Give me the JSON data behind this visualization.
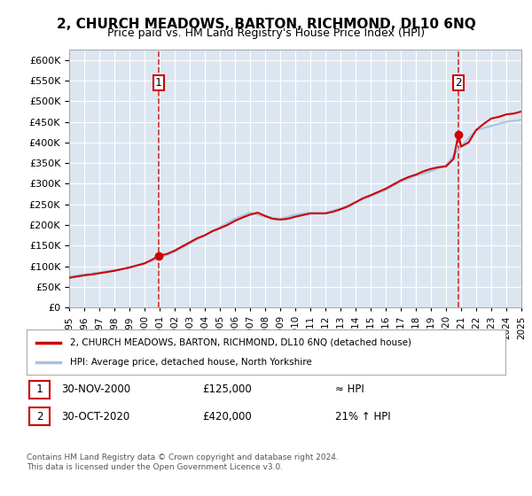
{
  "title": "2, CHURCH MEADOWS, BARTON, RICHMOND, DL10 6NQ",
  "subtitle": "Price paid vs. HM Land Registry's House Price Index (HPI)",
  "bg_color": "#dce6f1",
  "plot_bg_color": "#dce6f1",
  "hpi_color": "#a8c4e0",
  "price_color": "#cc0000",
  "annotation_box_color": "#cc0000",
  "sale1": {
    "date": 2000.92,
    "price": 125000,
    "label": "1"
  },
  "sale2": {
    "date": 2020.83,
    "price": 420000,
    "label": "2"
  },
  "hpi_years": [
    1995,
    1996,
    1997,
    1998,
    1999,
    2000,
    2001,
    2002,
    2003,
    2004,
    2005,
    2006,
    2007,
    2008,
    2009,
    2010,
    2011,
    2012,
    2013,
    2014,
    2015,
    2016,
    2017,
    2018,
    2019,
    2020,
    2021,
    2022,
    2023,
    2024,
    2025
  ],
  "hpi_values": [
    75000,
    80000,
    85000,
    90000,
    97000,
    107000,
    120000,
    135000,
    155000,
    175000,
    195000,
    215000,
    230000,
    220000,
    215000,
    225000,
    230000,
    230000,
    240000,
    255000,
    270000,
    285000,
    305000,
    320000,
    330000,
    345000,
    390000,
    430000,
    440000,
    450000,
    455000
  ],
  "price_years": [
    1995.0,
    1995.5,
    1996.0,
    1996.5,
    1997.0,
    1997.5,
    1998.0,
    1998.5,
    1999.0,
    1999.5,
    2000.0,
    2000.5,
    2000.92,
    2001.5,
    2002.0,
    2002.5,
    2003.0,
    2003.5,
    2004.0,
    2004.5,
    2005.0,
    2005.5,
    2006.0,
    2006.5,
    2007.0,
    2007.5,
    2008.0,
    2008.5,
    2009.0,
    2009.5,
    2010.0,
    2010.5,
    2011.0,
    2011.5,
    2012.0,
    2012.5,
    2013.0,
    2013.5,
    2014.0,
    2014.5,
    2015.0,
    2015.5,
    2016.0,
    2016.5,
    2017.0,
    2017.5,
    2018.0,
    2018.5,
    2019.0,
    2019.5,
    2020.0,
    2020.5,
    2020.83,
    2021.0,
    2021.5,
    2022.0,
    2022.5,
    2023.0,
    2023.5,
    2024.0,
    2024.5,
    2025.0
  ],
  "price_values": [
    72000,
    75000,
    78000,
    80000,
    83000,
    86000,
    89000,
    93000,
    97000,
    102000,
    107000,
    116000,
    125000,
    130000,
    138000,
    148000,
    158000,
    168000,
    175000,
    185000,
    192000,
    200000,
    210000,
    218000,
    225000,
    230000,
    222000,
    215000,
    213000,
    215000,
    220000,
    224000,
    228000,
    228000,
    228000,
    232000,
    238000,
    245000,
    255000,
    265000,
    272000,
    280000,
    288000,
    298000,
    308000,
    316000,
    322000,
    330000,
    336000,
    340000,
    342000,
    360000,
    420000,
    390000,
    400000,
    430000,
    445000,
    458000,
    462000,
    468000,
    470000,
    475000
  ],
  "xlim": [
    1995,
    2025
  ],
  "ylim": [
    0,
    625000
  ],
  "yticks": [
    0,
    50000,
    100000,
    150000,
    200000,
    250000,
    300000,
    350000,
    400000,
    450000,
    500000,
    550000,
    600000
  ],
  "xticks": [
    1995,
    1996,
    1997,
    1998,
    1999,
    2000,
    2001,
    2002,
    2003,
    2004,
    2005,
    2006,
    2007,
    2008,
    2009,
    2010,
    2011,
    2012,
    2013,
    2014,
    2015,
    2016,
    2017,
    2018,
    2019,
    2020,
    2021,
    2022,
    2023,
    2024,
    2025
  ],
  "legend_entries": [
    {
      "label": "2, CHURCH MEADOWS, BARTON, RICHMOND, DL10 6NQ (detached house)",
      "color": "#cc0000"
    },
    {
      "label": "HPI: Average price, detached house, North Yorkshire",
      "color": "#a8c4e0"
    }
  ],
  "table_rows": [
    {
      "num": "1",
      "date": "30-NOV-2000",
      "price": "£125,000",
      "hpi_note": "≈ HPI"
    },
    {
      "num": "2",
      "date": "30-OCT-2020",
      "price": "£420,000",
      "hpi_note": "21% ↑ HPI"
    }
  ],
  "footnote": "Contains HM Land Registry data © Crown copyright and database right 2024.\nThis data is licensed under the Open Government Licence v3.0."
}
